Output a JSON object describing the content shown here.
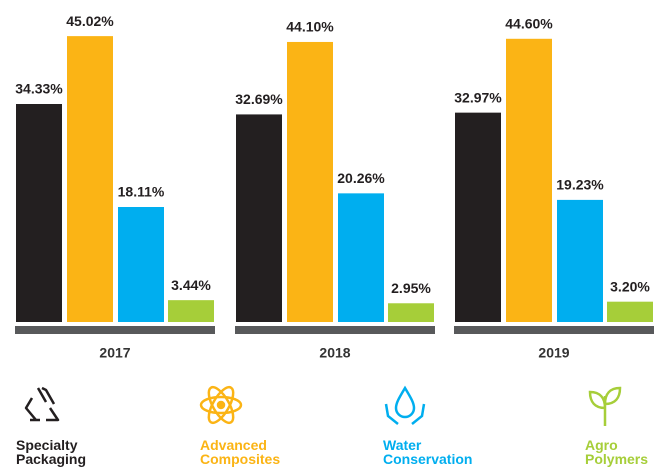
{
  "chart_data": {
    "type": "bar",
    "categories": [
      "2017",
      "2018",
      "2019"
    ],
    "series": [
      {
        "name": "Specialty Packaging",
        "color": "#231f20",
        "values": [
          34.33,
          32.69,
          32.97
        ],
        "value_labels": [
          "34.33%",
          "32.69%",
          "32.97%"
        ]
      },
      {
        "name": "Advanced Composites",
        "color": "#fbb415",
        "values": [
          45.02,
          44.1,
          44.6
        ],
        "value_labels": [
          "45.02%",
          "44.10%",
          "44.60%"
        ]
      },
      {
        "name": "Water Conservation",
        "color": "#00aeef",
        "values": [
          18.11,
          20.26,
          19.23
        ],
        "value_labels": [
          "18.11%",
          "20.26%",
          "19.23%"
        ]
      },
      {
        "name": "Agro Polymers",
        "color": "#a6ce39",
        "values": [
          3.44,
          2.95,
          3.2
        ],
        "value_labels": [
          "3.44%",
          "2.95%",
          "3.20%"
        ]
      }
    ]
  }
}
